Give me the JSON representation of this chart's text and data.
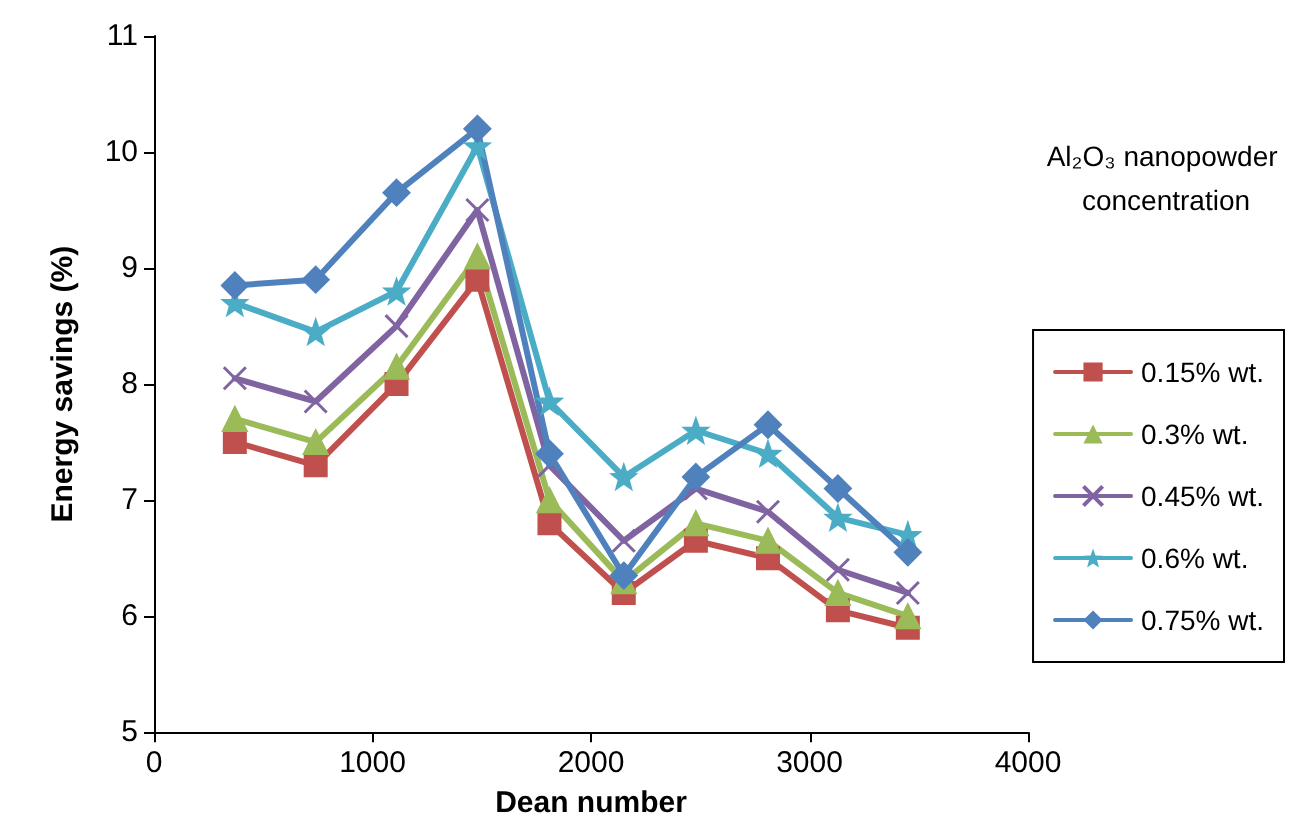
{
  "chart_data": {
    "type": "line",
    "xlabel": "Dean number",
    "ylabel": "Energy savings (%)",
    "legend_title": "Al₂O₃ nanopowder concentration",
    "x": [
      370,
      740,
      1110,
      1480,
      1810,
      2150,
      2480,
      2810,
      3130,
      3450
    ],
    "series": [
      {
        "name": "0.15% wt.",
        "color": "#c0504d",
        "marker": "square",
        "values": [
          7.5,
          7.3,
          8.0,
          8.9,
          6.8,
          6.2,
          6.65,
          6.5,
          6.05,
          5.9
        ]
      },
      {
        "name": "0.3% wt.",
        "color": "#9bbb59",
        "marker": "triangle",
        "values": [
          7.7,
          7.5,
          8.15,
          9.1,
          7.0,
          6.3,
          6.8,
          6.65,
          6.2,
          6.0
        ]
      },
      {
        "name": "0.45% wt.",
        "color": "#8064a2",
        "marker": "cross",
        "values": [
          8.05,
          7.85,
          8.5,
          9.5,
          7.3,
          6.65,
          7.1,
          6.9,
          6.4,
          6.2
        ]
      },
      {
        "name": "0.6% wt.",
        "color": "#4bacc6",
        "marker": "star",
        "values": [
          8.7,
          8.45,
          8.8,
          10.05,
          7.85,
          7.2,
          7.6,
          7.4,
          6.85,
          6.7
        ]
      },
      {
        "name": "0.75% wt.",
        "color": "#4f81bd",
        "marker": "diamond",
        "values": [
          8.85,
          8.9,
          9.65,
          10.2,
          7.4,
          6.35,
          7.2,
          7.65,
          7.1,
          6.55
        ]
      }
    ],
    "xlim": [
      0,
      4000
    ],
    "xticks": [
      0,
      1000,
      2000,
      3000,
      4000
    ],
    "ylim": [
      5,
      11
    ],
    "yticks": [
      5,
      6,
      7,
      8,
      9,
      10,
      11
    ],
    "grid": false,
    "legend": "right",
    "line_style": "solid"
  }
}
